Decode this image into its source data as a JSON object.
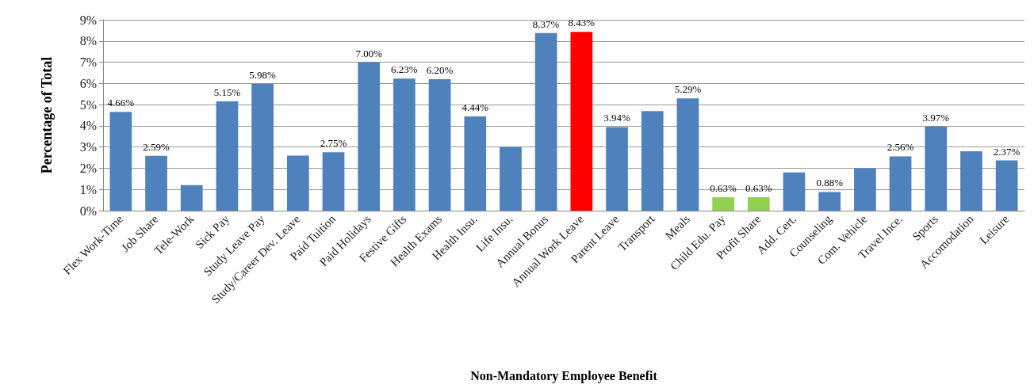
{
  "chart_data": {
    "type": "bar",
    "xlabel": "Non-Mandatory Employee Benefit",
    "ylabel": "Percentage of Total",
    "categories": [
      "Flex Work-Time",
      "Job Share",
      "Tele-Work",
      "Sick Pay",
      "Study Leave Pay",
      "Study/Career Dev. Leave",
      "Paid Tuition",
      "Paid Holidays",
      "Festive Gifts",
      "Health Exams",
      "Health Insu.",
      "Life Insu.",
      "Annual Bonus",
      "Annual Work Leave",
      "Parent Leave",
      "Transport",
      "Meals",
      "Child Edu. Pay",
      "Profit Share",
      "Add. Cert.",
      "Counseling",
      "Com. Vehicle",
      "Travel Ince.",
      "Sports",
      "Accomodation",
      "Leisure"
    ],
    "values": [
      4.66,
      2.59,
      1.2,
      5.15,
      5.98,
      2.6,
      2.75,
      7.0,
      6.23,
      6.2,
      4.44,
      3.0,
      8.37,
      8.43,
      3.94,
      4.7,
      5.29,
      0.63,
      0.63,
      1.8,
      0.88,
      2.0,
      2.56,
      3.97,
      2.8,
      2.37
    ],
    "value_labels": [
      "4.66%",
      "2.59%",
      null,
      "5.15%",
      "5.98%",
      null,
      "2.75%",
      "7.00%",
      "6.23%",
      "6.20%",
      "4.44%",
      null,
      "8.37%",
      "8.43%",
      "3.94%",
      null,
      "5.29%",
      "0.63%",
      "0.63%",
      null,
      "0.88%",
      null,
      "2.56%",
      "3.97%",
      null,
      "2.37%"
    ],
    "colors": [
      "#4f81bd",
      "#4f81bd",
      "#4f81bd",
      "#4f81bd",
      "#4f81bd",
      "#4f81bd",
      "#4f81bd",
      "#4f81bd",
      "#4f81bd",
      "#4f81bd",
      "#4f81bd",
      "#4f81bd",
      "#4f81bd",
      "#ff0000",
      "#4f81bd",
      "#4f81bd",
      "#4f81bd",
      "#92d050",
      "#92d050",
      "#4f81bd",
      "#4f81bd",
      "#4f81bd",
      "#4f81bd",
      "#4f81bd",
      "#4f81bd",
      "#4f81bd"
    ],
    "ylim": [
      0,
      9
    ],
    "yticks": [
      {
        "value": 0,
        "label": "0%"
      },
      {
        "value": 1,
        "label": "1%"
      },
      {
        "value": 2,
        "label": "2%"
      },
      {
        "value": 3,
        "label": "3%"
      },
      {
        "value": 4,
        "label": "4%"
      },
      {
        "value": 5,
        "label": "5%"
      },
      {
        "value": 6,
        "label": "6%"
      },
      {
        "value": 7,
        "label": "7%"
      },
      {
        "value": 8,
        "label": "8%"
      },
      {
        "value": 9,
        "label": "9%"
      }
    ],
    "grid": "y"
  }
}
